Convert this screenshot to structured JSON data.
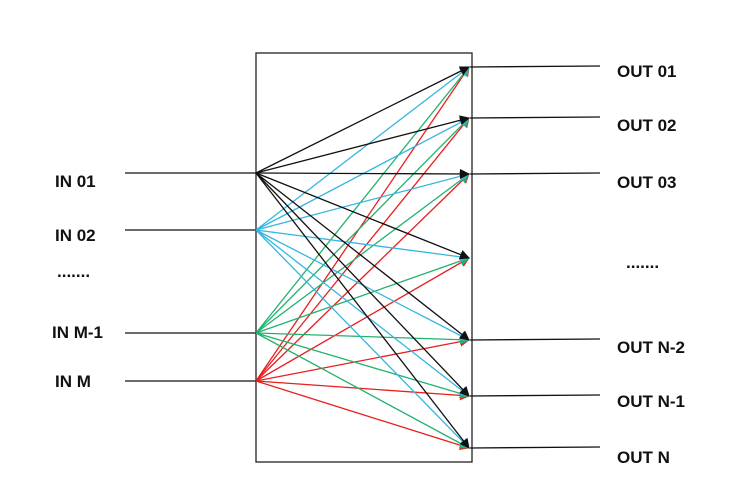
{
  "inputs": [
    {
      "label": "IN 01",
      "color": "#111111"
    },
    {
      "label": "IN 02",
      "color": "#35b6e0"
    },
    {
      "label": "IN M-1",
      "color": "#22b26e"
    },
    {
      "label": "IN M",
      "color": "#e8201f"
    }
  ],
  "input_ellipsis": ".......",
  "outputs": [
    {
      "label": "OUT 01"
    },
    {
      "label": "OUT 02"
    },
    {
      "label": "OUT 03"
    },
    {
      "label": ""
    },
    {
      "label": "OUT N-2"
    },
    {
      "label": "OUT N-1"
    },
    {
      "label": "OUT N"
    }
  ],
  "output_ellipsis": ".......",
  "connection": "every input connects to every output"
}
